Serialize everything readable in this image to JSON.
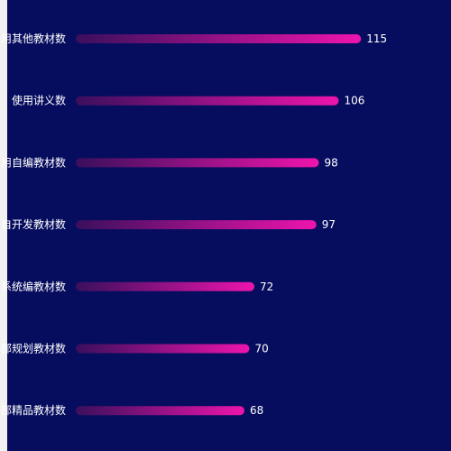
{
  "chart_data": {
    "type": "bar",
    "orientation": "horizontal",
    "categories": [
      "用其他教材数",
      "使用讲义数",
      "用自编教材数",
      "自开发教材数",
      "系统编教材数",
      "部规划教材数",
      "部精品教材数"
    ],
    "values": [
      115,
      106,
      98,
      97,
      72,
      70,
      68
    ],
    "xlim": [
      0,
      150
    ],
    "grid": false,
    "colors": {
      "panel_bg": "#070d5e",
      "bar_start": "#3a0f5c",
      "bar_end": "#ee14ad",
      "text": "#ffffff"
    }
  }
}
